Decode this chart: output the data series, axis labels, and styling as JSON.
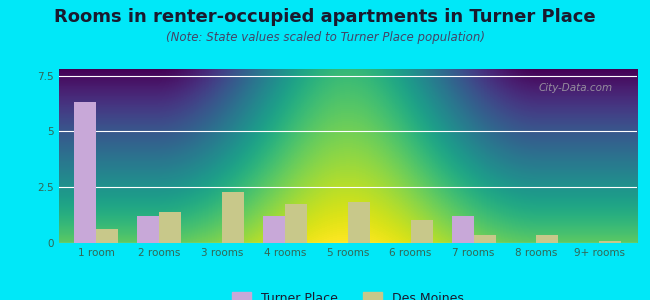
{
  "title": "Rooms in renter-occupied apartments in Turner Place",
  "subtitle": "(Note: State values scaled to Turner Place population)",
  "categories": [
    "1 room",
    "2 rooms",
    "3 rooms",
    "4 rooms",
    "5 rooms",
    "6 rooms",
    "7 rooms",
    "8 rooms",
    "9+ rooms"
  ],
  "turner_place": [
    6.3,
    1.2,
    0.0,
    1.2,
    0.0,
    0.0,
    1.2,
    0.0,
    0.0
  ],
  "des_moines": [
    0.65,
    1.4,
    2.3,
    1.75,
    1.85,
    1.05,
    0.38,
    0.38,
    0.08
  ],
  "turner_color": "#c8a8d8",
  "des_moines_color": "#c8c88a",
  "background_outer": "#00e8f8",
  "ylim": [
    0,
    7.8
  ],
  "yticks": [
    0,
    2.5,
    5,
    7.5
  ],
  "bar_width": 0.35,
  "legend_labels": [
    "Turner Place",
    "Des Moines"
  ],
  "title_fontsize": 13,
  "subtitle_fontsize": 8.5,
  "tick_fontsize": 7.5,
  "legend_fontsize": 9,
  "title_color": "#1a1a2e",
  "subtitle_color": "#444466",
  "tick_color": "#336655"
}
